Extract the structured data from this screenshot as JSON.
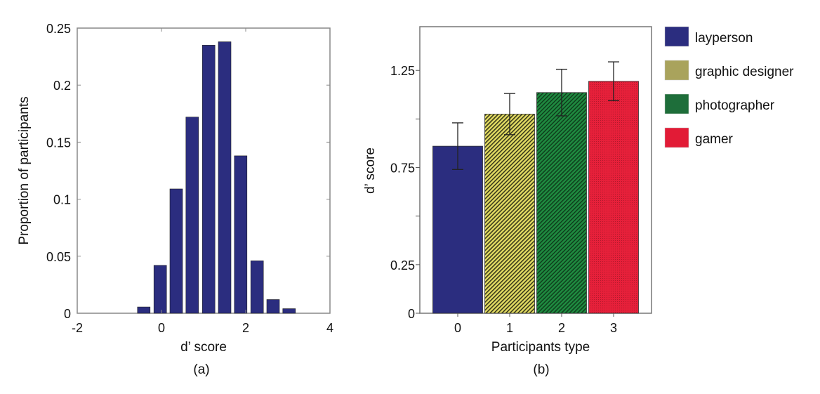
{
  "chart_data": [
    {
      "type": "bar",
      "panel_label": "(a)",
      "title": "",
      "xlabel": "d’ score",
      "ylabel": "Proportion of participants",
      "xlim": [
        -2,
        4
      ],
      "ylim": [
        0,
        0.25
      ],
      "xticks": [
        "-2",
        "0",
        "2",
        "4"
      ],
      "yticks": [
        "0",
        "0.05",
        "0.1",
        "0.15",
        "0.2",
        "0.25"
      ],
      "bar_width": 0.3,
      "color": "#2b2d7f",
      "x": [
        -0.42,
        -0.03,
        0.35,
        0.73,
        1.12,
        1.5,
        1.88,
        2.27,
        2.65,
        3.03
      ],
      "values": [
        0.0055,
        0.042,
        0.109,
        0.172,
        0.235,
        0.238,
        0.138,
        0.046,
        0.012,
        0.004
      ]
    },
    {
      "type": "bar",
      "panel_label": "(b)",
      "title": "",
      "xlabel": "Participants type",
      "ylabel": "d’ score",
      "ylim": [
        0,
        1.475
      ],
      "categories": [
        "0",
        "1",
        "2",
        "3"
      ],
      "yticks": [
        {
          "v": 0,
          "label": "0"
        },
        {
          "v": 0.25,
          "label": "0.25"
        },
        {
          "v": 0.5,
          "label": ""
        },
        {
          "v": 0.75,
          "label": "0.75"
        },
        {
          "v": 1.0,
          "label": ""
        },
        {
          "v": 1.25,
          "label": "1.25"
        }
      ],
      "series": [
        {
          "name": "layperson",
          "value": 0.86,
          "error": 0.12,
          "color": "#2b2d7f",
          "pattern": "solid"
        },
        {
          "name": "graphic designer",
          "value": 1.025,
          "error": 0.106,
          "color": "#d6d05a",
          "pattern": "hatch"
        },
        {
          "name": "photographer",
          "value": 1.136,
          "error": 0.12,
          "color": "#1e7a3c",
          "pattern": "hatch"
        },
        {
          "name": "gamer",
          "value": 1.194,
          "error": 0.1,
          "color": "#e21b36",
          "pattern": "dots"
        }
      ],
      "legend_position": "right"
    }
  ]
}
